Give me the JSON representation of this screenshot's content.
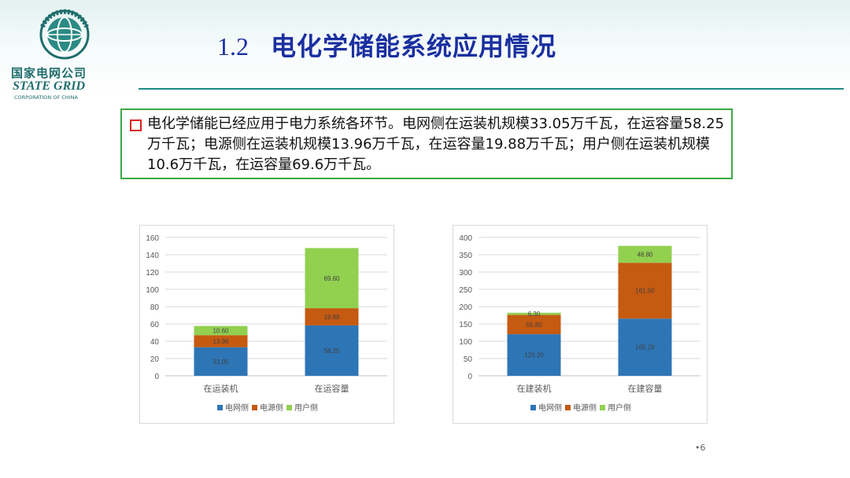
{
  "logo": {
    "cn": "国家电网公司",
    "en": "STATE GRID",
    "sub": "CORPORATION OF CHINA"
  },
  "header": {
    "number": "1.2",
    "title": "电化学储能系统应用情况"
  },
  "summary": {
    "text": "电化学储能已经应用于电力系统各环节。电网侧在运装机规模33.05万千瓦，在运容量58.25万千瓦；电源侧在运装机规模13.96万千瓦，在运容量19.88万千瓦；用户侧在运装机规模10.6万千瓦，在运容量69.6万千瓦。"
  },
  "colors": {
    "grid": "#2e75b6",
    "source": "#c55a11",
    "user": "#92d050",
    "title": "#1a2fa0",
    "box_border": "#3aa843",
    "bullet": "#d9211c"
  },
  "chart_data": [
    {
      "type": "bar",
      "stacked": true,
      "categories": [
        "在运装机",
        "在运容量"
      ],
      "series": [
        {
          "name": "电网侧",
          "values": [
            33.05,
            58.25
          ],
          "labels": [
            "33.05",
            "58.25"
          ]
        },
        {
          "name": "电源侧",
          "values": [
            13.96,
            19.88
          ],
          "labels": [
            "13.96",
            "19.88"
          ]
        },
        {
          "name": "用户侧",
          "values": [
            10.6,
            69.6
          ],
          "labels": [
            "10.60",
            "69.60"
          ]
        }
      ],
      "ylim": [
        0,
        160
      ],
      "yticks": [
        "0",
        "20",
        "40",
        "60",
        "80",
        "100",
        "120",
        "140",
        "160"
      ],
      "grid": true,
      "legend": "bottom"
    },
    {
      "type": "bar",
      "stacked": true,
      "categories": [
        "在建装机",
        "在建容量"
      ],
      "series": [
        {
          "name": "电网侧",
          "values": [
            120.2,
            165.29
          ],
          "labels": [
            "120.20",
            "165.29"
          ]
        },
        {
          "name": "电源侧",
          "values": [
            55.8,
            161.5
          ],
          "labels": [
            "55.80",
            "161.50"
          ]
        },
        {
          "name": "用户侧",
          "values": [
            6.3,
            48.8
          ],
          "labels": [
            "6.30",
            "48.80"
          ]
        }
      ],
      "ylim": [
        0,
        400
      ],
      "yticks": [
        "0",
        "50",
        "100",
        "150",
        "200",
        "250",
        "300",
        "350",
        "400"
      ],
      "grid": true,
      "legend": "bottom"
    }
  ],
  "page": {
    "number": "•6"
  }
}
